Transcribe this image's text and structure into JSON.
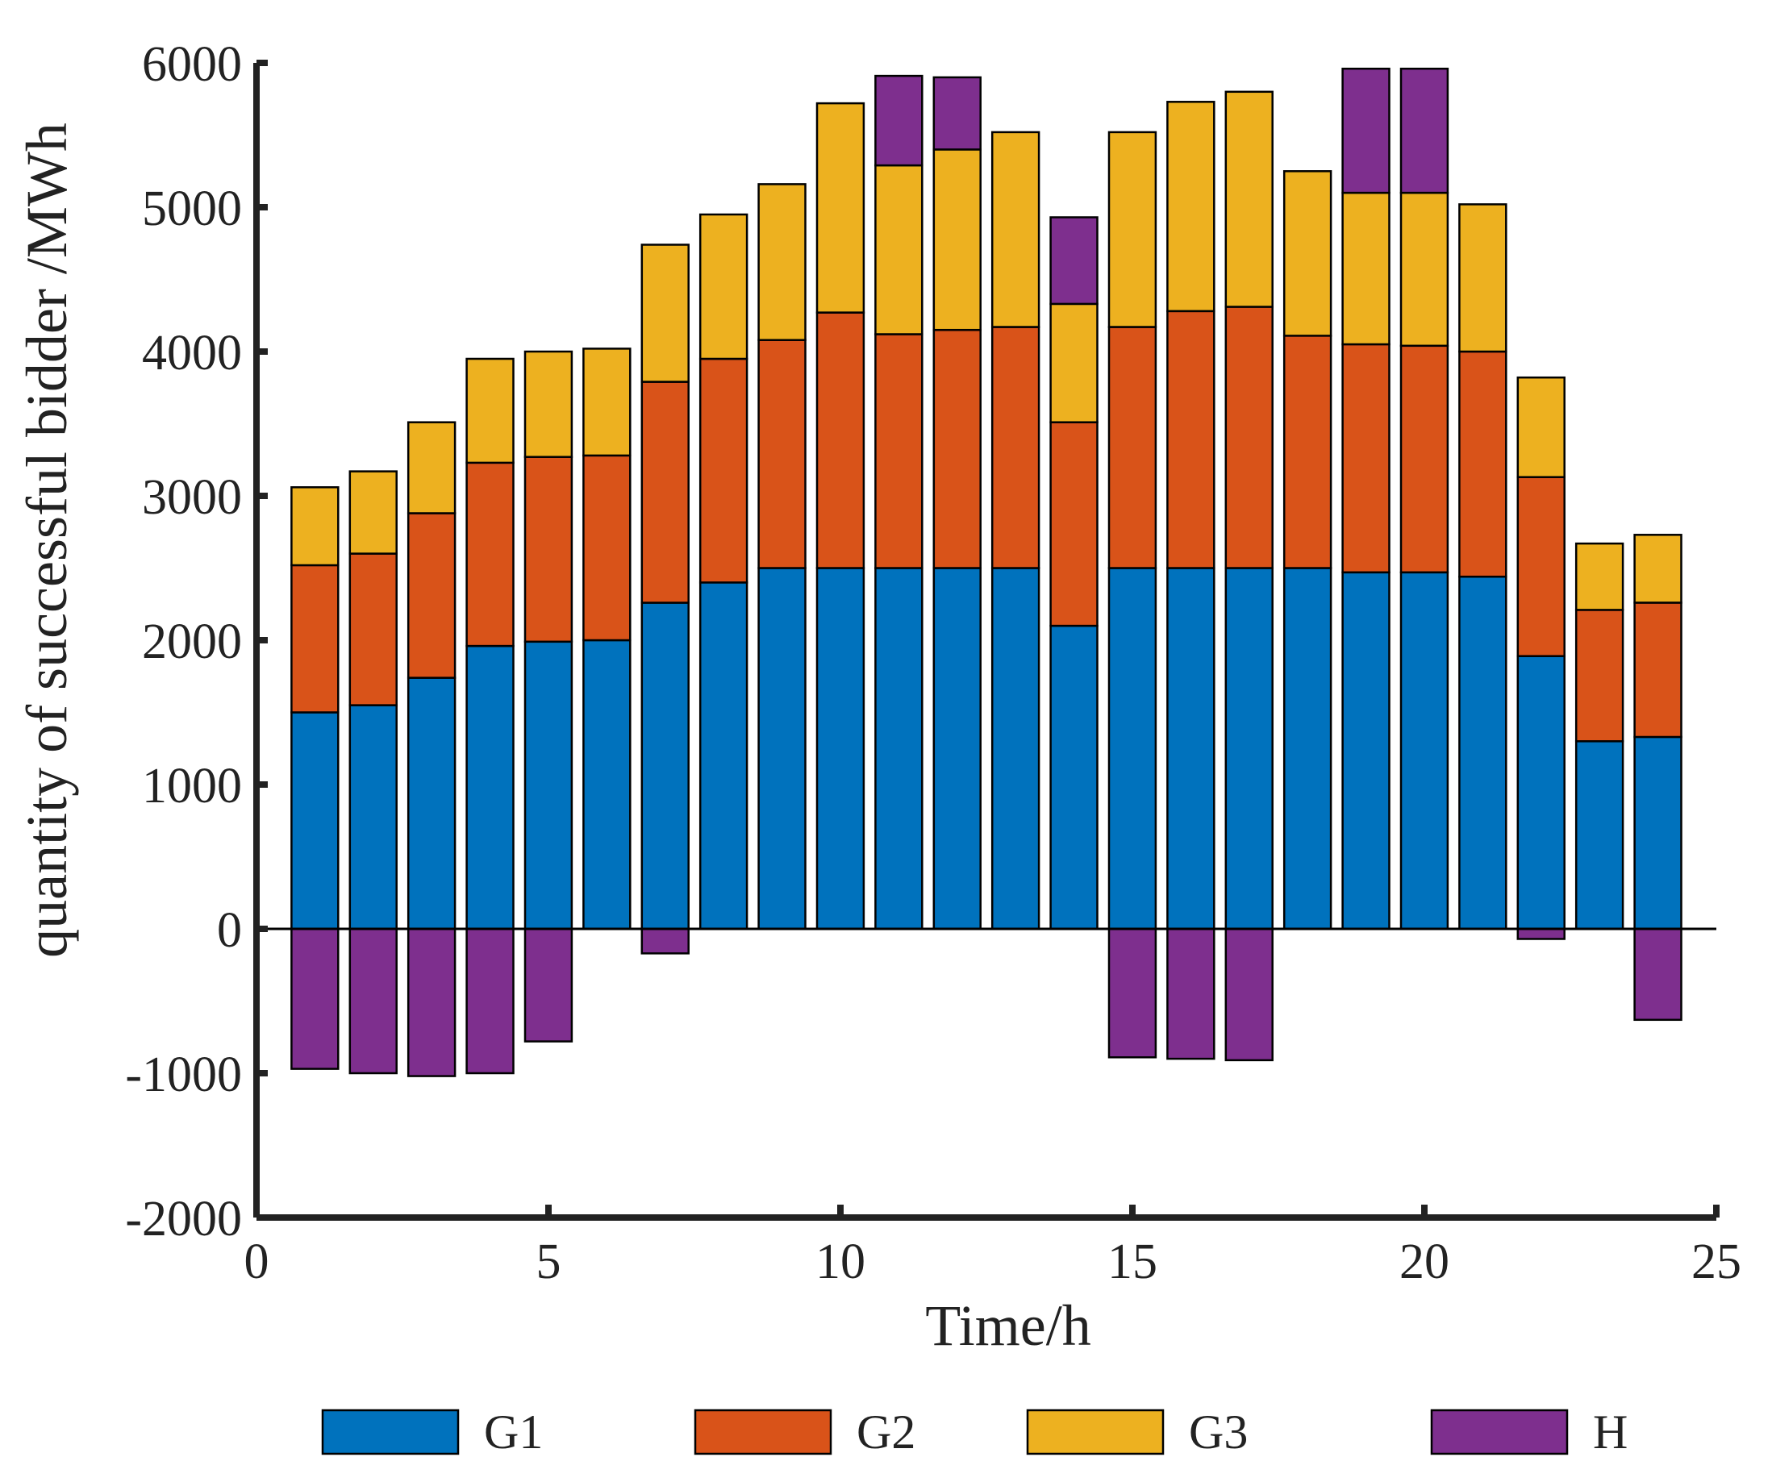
{
  "chart_data": {
    "type": "bar",
    "stacked": true,
    "xlabel": "Time/h",
    "ylabel": "quantity of successful bidder /MWh",
    "xlim": [
      0,
      25
    ],
    "ylim": [
      -2000,
      6000
    ],
    "x_ticks": [
      "0",
      "5",
      "10",
      "15",
      "20",
      "25"
    ],
    "y_ticks": [
      "6000",
      "5000",
      "4000",
      "3000",
      "2000",
      "1000",
      "0",
      "-1000",
      "-2000"
    ],
    "x": [
      1,
      2,
      3,
      4,
      5,
      6,
      7,
      8,
      9,
      10,
      11,
      12,
      13,
      14,
      15,
      16,
      17,
      18,
      19,
      20,
      21,
      22,
      23,
      24
    ],
    "legend_position": "bottom",
    "series": [
      {
        "name": "G1",
        "color": "#0072BD",
        "values": [
          1500,
          1550,
          1740,
          1960,
          1990,
          2000,
          2260,
          2400,
          2500,
          2500,
          2500,
          2500,
          2500,
          2100,
          2500,
          2500,
          2500,
          2500,
          2470,
          2470,
          2440,
          1890,
          1300,
          1330
        ]
      },
      {
        "name": "G2",
        "color": "#D95319",
        "values": [
          1020,
          1050,
          1140,
          1270,
          1280,
          1280,
          1530,
          1550,
          1580,
          1770,
          1620,
          1650,
          1670,
          1410,
          1670,
          1780,
          1810,
          1610,
          1580,
          1570,
          1560,
          1240,
          910,
          930
        ]
      },
      {
        "name": "G3",
        "color": "#EDB120",
        "values": [
          540,
          570,
          630,
          720,
          730,
          740,
          950,
          1000,
          1080,
          1450,
          1170,
          1250,
          1350,
          820,
          1350,
          1450,
          1490,
          1140,
          1050,
          1060,
          1020,
          690,
          460,
          470
        ]
      },
      {
        "name": "H",
        "color": "#7E2F8E",
        "values": [
          -970,
          -1000,
          -1020,
          -1000,
          -780,
          0,
          -170,
          0,
          0,
          0,
          620,
          500,
          0,
          600,
          -890,
          -900,
          -910,
          0,
          860,
          860,
          0,
          -70,
          0,
          -630
        ]
      }
    ]
  }
}
